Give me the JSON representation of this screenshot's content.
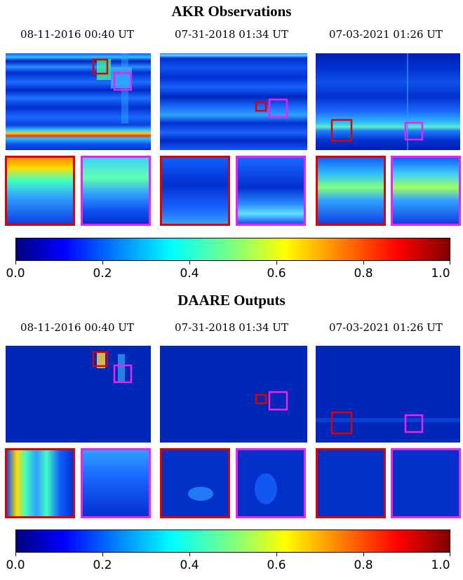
{
  "figure": {
    "top_title": "AKR Observations",
    "bottom_title": "DAARE Outputs",
    "dates": [
      "08-11-2016 00:40 UT",
      "07-31-2018 01:34 UT",
      "07-03-2021 01:26 UT"
    ],
    "colorbar": {
      "ticks": [
        "0.0",
        "0.2",
        "0.4",
        "0.6",
        "0.8",
        "1.0"
      ],
      "colormap": "jet",
      "range": [
        0,
        1
      ]
    },
    "colors": {
      "zoom_box_1": "#e00000",
      "zoom_box_2": "#ee22ee",
      "background_low": "#00007f"
    }
  }
}
